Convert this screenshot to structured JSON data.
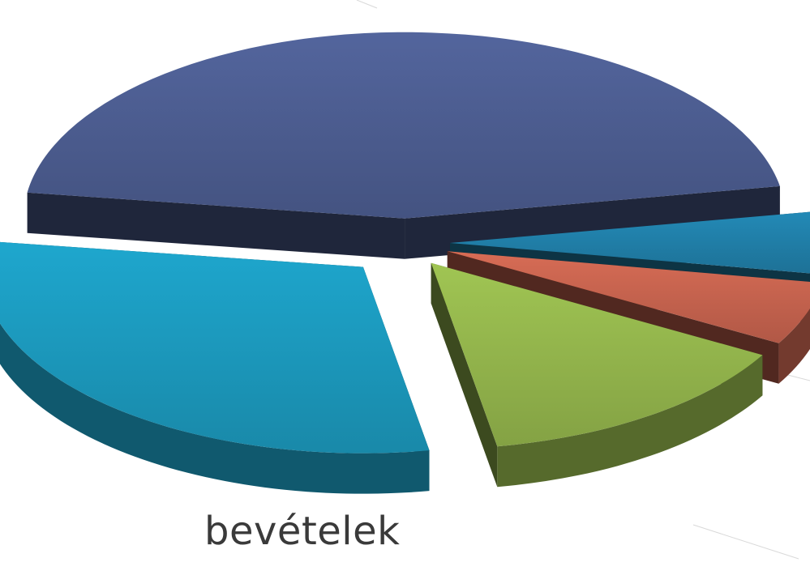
{
  "chart_data": {
    "type": "pie",
    "style": "3d-exploded",
    "title": "",
    "label": "bevételek",
    "series": [
      {
        "value": 45.0,
        "color": "#4a5a8c"
      },
      {
        "value": 5.5,
        "color": "#1f7ba3"
      },
      {
        "value": 5.5,
        "color": "#c0604c"
      },
      {
        "value": 14.0,
        "color": "#8fb04a"
      },
      {
        "value": 30.0,
        "color": "#1b95b8"
      }
    ]
  }
}
